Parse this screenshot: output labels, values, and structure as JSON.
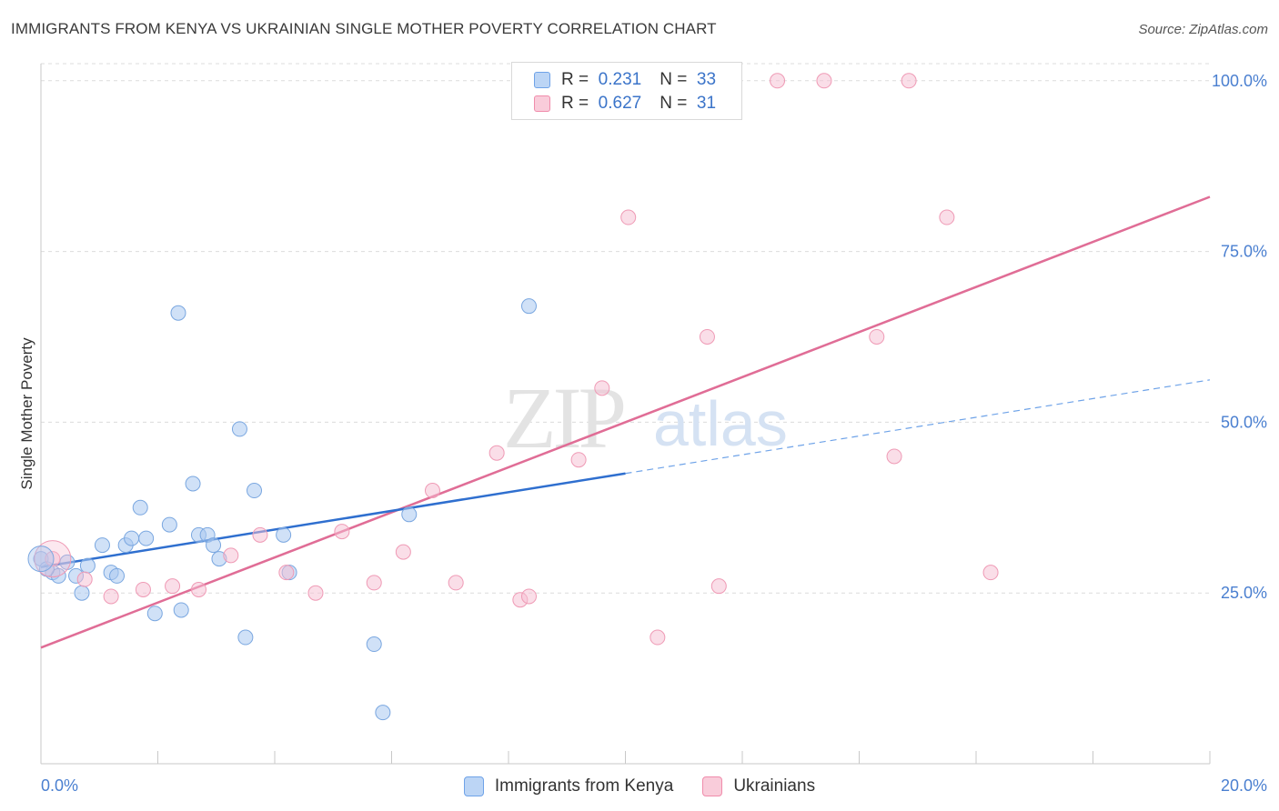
{
  "title": "IMMIGRANTS FROM KENYA VS UKRAINIAN SINGLE MOTHER POVERTY CORRELATION CHART",
  "source": "Source: ZipAtlas.com",
  "watermark": {
    "zip": "ZIP",
    "atlas": "atlas"
  },
  "legend_top": {
    "rows": [
      {
        "r_label": "R =",
        "r_value": "0.231",
        "n_label": "N =",
        "n_value": "33",
        "color": "#6fa3e8"
      },
      {
        "r_label": "R =",
        "r_value": "0.627",
        "n_label": "N =",
        "n_value": "31",
        "color": "#f08cab"
      }
    ]
  },
  "legend_bottom": [
    {
      "label": "Immigrants from Kenya",
      "color": "#6fa3e8"
    },
    {
      "label": "Ukrainians",
      "color": "#f08cab"
    }
  ],
  "chart_data": {
    "type": "scatter",
    "title": "IMMIGRANTS FROM KENYA VS UKRAINIAN SINGLE MOTHER POVERTY CORRELATION CHART",
    "xlabel": "",
    "ylabel": "Single Mother Poverty",
    "xlim": [
      0,
      20
    ],
    "ylim": [
      0,
      102.5
    ],
    "x_tick_labels": [
      "0.0%",
      "20.0%"
    ],
    "y_tick_values": [
      25,
      50,
      75,
      100
    ],
    "y_tick_labels": [
      "25.0%",
      "50.0%",
      "75.0%",
      "100.0%"
    ],
    "grid": true,
    "legend_position": "top-center",
    "series": [
      {
        "name": "Immigrants from Kenya",
        "color": "#6fa3e8",
        "points": [
          [
            0.0,
            30.0
          ],
          [
            0.2,
            28.0
          ],
          [
            0.3,
            27.5
          ],
          [
            0.45,
            29.5
          ],
          [
            0.6,
            27.5
          ],
          [
            0.7,
            25.0
          ],
          [
            0.8,
            29.0
          ],
          [
            1.05,
            32.0
          ],
          [
            1.2,
            28.0
          ],
          [
            1.3,
            27.5
          ],
          [
            1.45,
            32.0
          ],
          [
            1.55,
            33.0
          ],
          [
            1.7,
            37.5
          ],
          [
            1.8,
            33.0
          ],
          [
            1.95,
            22.0
          ],
          [
            2.2,
            35.0
          ],
          [
            2.35,
            66.0
          ],
          [
            2.4,
            22.5
          ],
          [
            2.6,
            41.0
          ],
          [
            2.7,
            33.5
          ],
          [
            2.85,
            33.5
          ],
          [
            2.95,
            32.0
          ],
          [
            3.05,
            30.0
          ],
          [
            3.4,
            49.0
          ],
          [
            3.5,
            18.5
          ],
          [
            3.65,
            40.0
          ],
          [
            4.15,
            33.5
          ],
          [
            4.25,
            28.0
          ],
          [
            5.7,
            17.5
          ],
          [
            5.85,
            7.5
          ],
          [
            6.3,
            36.5
          ],
          [
            8.35,
            67.0
          ],
          [
            0.1,
            28.5
          ]
        ],
        "trend_solid": [
          [
            0.0,
            28.8
          ],
          [
            10.0,
            42.5
          ]
        ],
        "trend_dashed": [
          [
            10.0,
            42.5
          ],
          [
            20.0,
            56.2
          ]
        ]
      },
      {
        "name": "Ukrainians",
        "color": "#f08cab",
        "points": [
          [
            0.2,
            30.0
          ],
          [
            0.75,
            27.0
          ],
          [
            1.2,
            24.5
          ],
          [
            1.75,
            25.5
          ],
          [
            2.25,
            26.0
          ],
          [
            2.7,
            25.5
          ],
          [
            3.25,
            30.5
          ],
          [
            3.75,
            33.5
          ],
          [
            4.2,
            28.0
          ],
          [
            4.7,
            25.0
          ],
          [
            5.15,
            34.0
          ],
          [
            5.7,
            26.5
          ],
          [
            6.2,
            31.0
          ],
          [
            6.7,
            40.0
          ],
          [
            7.1,
            26.5
          ],
          [
            7.8,
            45.5
          ],
          [
            8.2,
            24.0
          ],
          [
            8.35,
            24.5
          ],
          [
            9.2,
            44.5
          ],
          [
            9.6,
            55.0
          ],
          [
            10.05,
            80.0
          ],
          [
            10.55,
            18.5
          ],
          [
            11.4,
            62.5
          ],
          [
            11.6,
            26.0
          ],
          [
            12.6,
            100.0
          ],
          [
            13.4,
            100.0
          ],
          [
            14.3,
            62.5
          ],
          [
            14.6,
            45.0
          ],
          [
            14.85,
            100.0
          ],
          [
            15.5,
            80.0
          ],
          [
            16.25,
            28.0
          ]
        ],
        "trend_solid": [
          [
            0.0,
            17.0
          ],
          [
            20.0,
            83.0
          ]
        ]
      }
    ]
  }
}
